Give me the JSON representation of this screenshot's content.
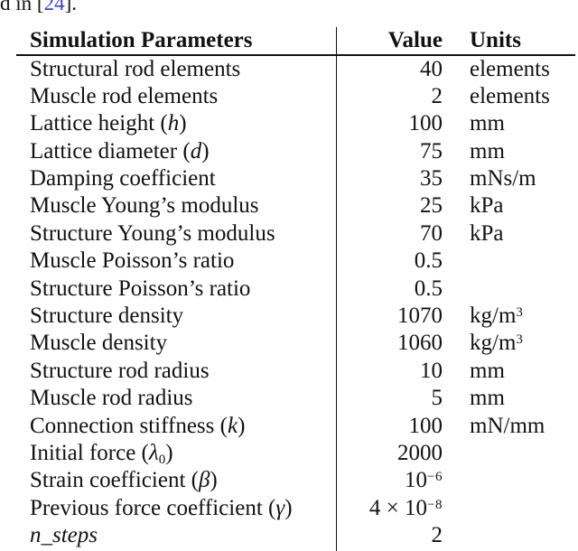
{
  "page": {
    "background": "#ffffff",
    "text_color": "#121212",
    "rule_color": "#121212"
  },
  "intro": {
    "prefix": "d in [",
    "citation": "24",
    "suffix": "].",
    "citation_color": "#3b3fe8"
  },
  "table": {
    "headers": {
      "parameters": "Simulation Parameters",
      "value": "Value",
      "units": "Units"
    },
    "rows": [
      {
        "param": "Structural rod elements",
        "math": "",
        "sub": "",
        "close": "",
        "value": "40",
        "value_sup": "",
        "units": "elements",
        "units_sup": "",
        "italic": false
      },
      {
        "param": "Muscle rod elements",
        "math": "",
        "sub": "",
        "close": "",
        "value": "2",
        "value_sup": "",
        "units": "elements",
        "units_sup": "",
        "italic": false
      },
      {
        "param": "Lattice height (",
        "math": "h",
        "sub": "",
        "close": ")",
        "value": "100",
        "value_sup": "",
        "units": "mm",
        "units_sup": "",
        "italic": false
      },
      {
        "param": "Lattice diameter (",
        "math": "d",
        "sub": "",
        "close": ")",
        "value": "75",
        "value_sup": "",
        "units": "mm",
        "units_sup": "",
        "italic": false
      },
      {
        "param": "Damping coefficient",
        "math": "",
        "sub": "",
        "close": "",
        "value": "35",
        "value_sup": "",
        "units": "mNs/m",
        "units_sup": "",
        "italic": false
      },
      {
        "param": "Muscle Young’s modulus",
        "math": "",
        "sub": "",
        "close": "",
        "value": "25",
        "value_sup": "",
        "units": "kPa",
        "units_sup": "",
        "italic": false
      },
      {
        "param": "Structure Young’s modulus",
        "math": "",
        "sub": "",
        "close": "",
        "value": "70",
        "value_sup": "",
        "units": "kPa",
        "units_sup": "",
        "italic": false
      },
      {
        "param": "Muscle Poisson’s ratio",
        "math": "",
        "sub": "",
        "close": "",
        "value": "0.5",
        "value_sup": "",
        "units": "",
        "units_sup": "",
        "italic": false
      },
      {
        "param": "Structure Poisson’s ratio",
        "math": "",
        "sub": "",
        "close": "",
        "value": "0.5",
        "value_sup": "",
        "units": "",
        "units_sup": "",
        "italic": false
      },
      {
        "param": "Structure density",
        "math": "",
        "sub": "",
        "close": "",
        "value": "1070",
        "value_sup": "",
        "units": "kg/m",
        "units_sup": "3",
        "italic": false
      },
      {
        "param": "Muscle density",
        "math": "",
        "sub": "",
        "close": "",
        "value": "1060",
        "value_sup": "",
        "units": "kg/m",
        "units_sup": "3",
        "italic": false
      },
      {
        "param": "Structure rod radius",
        "math": "",
        "sub": "",
        "close": "",
        "value": "10",
        "value_sup": "",
        "units": "mm",
        "units_sup": "",
        "italic": false
      },
      {
        "param": "Muscle rod radius",
        "math": "",
        "sub": "",
        "close": "",
        "value": "5",
        "value_sup": "",
        "units": "mm",
        "units_sup": "",
        "italic": false
      },
      {
        "param": "Connection stiffness (",
        "math": "k",
        "sub": "",
        "close": ")",
        "value": "100",
        "value_sup": "",
        "units": "mN/mm",
        "units_sup": "",
        "italic": false
      },
      {
        "param": "Initial force (",
        "math": "λ",
        "sub": "0",
        "close": ")",
        "value": "2000",
        "value_sup": "",
        "units": "",
        "units_sup": "",
        "italic": false
      },
      {
        "param": "Strain coefficient (",
        "math": "β",
        "sub": "",
        "close": ")",
        "value": "10",
        "value_sup": "−6",
        "units": "",
        "units_sup": "",
        "italic": false
      },
      {
        "param": "Previous force coefficient (",
        "math": "γ",
        "sub": "",
        "close": ")",
        "value": "4 × 10",
        "value_sup": "−8",
        "units": "",
        "units_sup": "",
        "italic": false
      },
      {
        "param": "n_steps",
        "math": "",
        "sub": "",
        "close": "",
        "value": "2",
        "value_sup": "",
        "units": "",
        "units_sup": "",
        "italic": true
      }
    ]
  }
}
